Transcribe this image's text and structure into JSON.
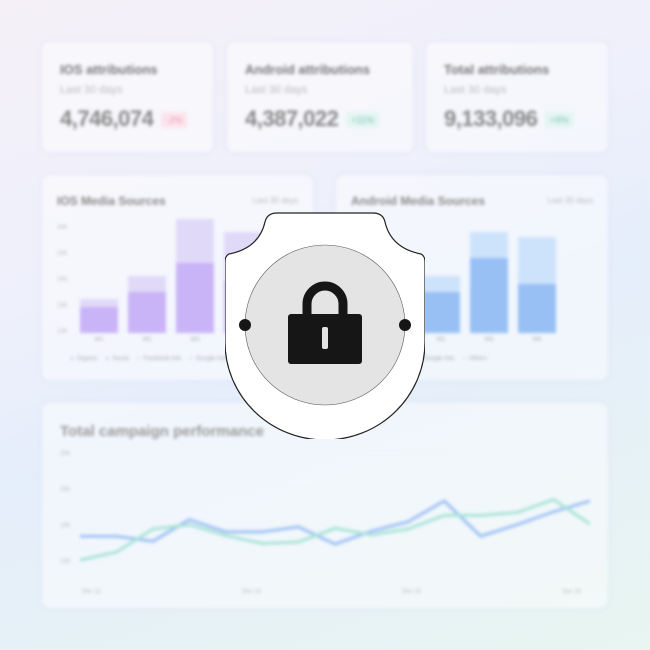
{
  "stats": [
    {
      "title": "IOS attributions",
      "subtitle": "Last 30 days",
      "value": "4,746,074",
      "change": "-2%",
      "change_color": "#e89ab3",
      "change_bg": "#fbe3ec"
    },
    {
      "title": "Android attributions",
      "subtitle": "Last 30 days",
      "value": "4,387,022",
      "change": "+11%",
      "change_color": "#7cc4bb",
      "change_bg": "#e3f4f1"
    },
    {
      "title": "Total attributions",
      "subtitle": "Last 30 days",
      "value": "9,133,096",
      "change": "+9%",
      "change_color": "#7cc4bb",
      "change_bg": "#e3f4f1"
    }
  ],
  "ios_chart": {
    "type": "bar",
    "title": "IOS Media Sources",
    "range": "Last 30 days",
    "y_ticks": [
      "30K",
      "25K",
      "20K",
      "15K",
      "10K"
    ],
    "categories": [
      "W1",
      "W2",
      "W3",
      "W4"
    ],
    "lower": [
      15,
      17.8,
      23.5,
      20
    ],
    "total": [
      16.5,
      21,
      32,
      29.5
    ],
    "colors": [
      "#c9b4f7",
      "#e0d9f8"
    ],
    "legend": [
      "Organic",
      "Social",
      "Facebook Ads",
      "Google Ads"
    ]
  },
  "android_chart": {
    "type": "bar",
    "title": "Android Media Sources",
    "range": "Last 30 days",
    "y_ticks": [
      "30K",
      "25K",
      "20K",
      "15K",
      "10K"
    ],
    "categories": [
      "W1",
      "W2",
      "W3",
      "W4"
    ],
    "lower": [
      15,
      17.8,
      24.5,
      19.5
    ],
    "total": [
      16.5,
      21,
      29.5,
      28.5
    ],
    "colors": [
      "#98c0f4",
      "#cde2fb"
    ],
    "legend": [
      "Facebook Ads",
      "Google Ads",
      "Others"
    ]
  },
  "chart_data": {
    "type": "line",
    "title": "Total campaign performance",
    "y_ticks": [
      "25K",
      "20K",
      "15K",
      "10K"
    ],
    "x_ticks": [
      "Dec 12",
      "Dec 14",
      "Dec 16",
      "Dec 18"
    ],
    "ylim": [
      10,
      25
    ],
    "series": [
      {
        "color": "#9fc0f6",
        "values": [
          13.3,
          13.3,
          12.6,
          15.6,
          13.9,
          13.9,
          14.6,
          12.2,
          14.0,
          15.3,
          18.2,
          13.3,
          14.9,
          16.7,
          18.2
        ]
      },
      {
        "color": "#a8e3d6",
        "values": [
          10,
          11.1,
          14.3,
          14.9,
          13.4,
          12.3,
          12.5,
          14.4,
          13.5,
          14.3,
          16.2,
          16.2,
          16.6,
          18.4,
          15.0
        ]
      }
    ]
  },
  "lock": {
    "icon": "lock-icon",
    "fill": "#ffffff",
    "circle": "#e4e4e4"
  }
}
